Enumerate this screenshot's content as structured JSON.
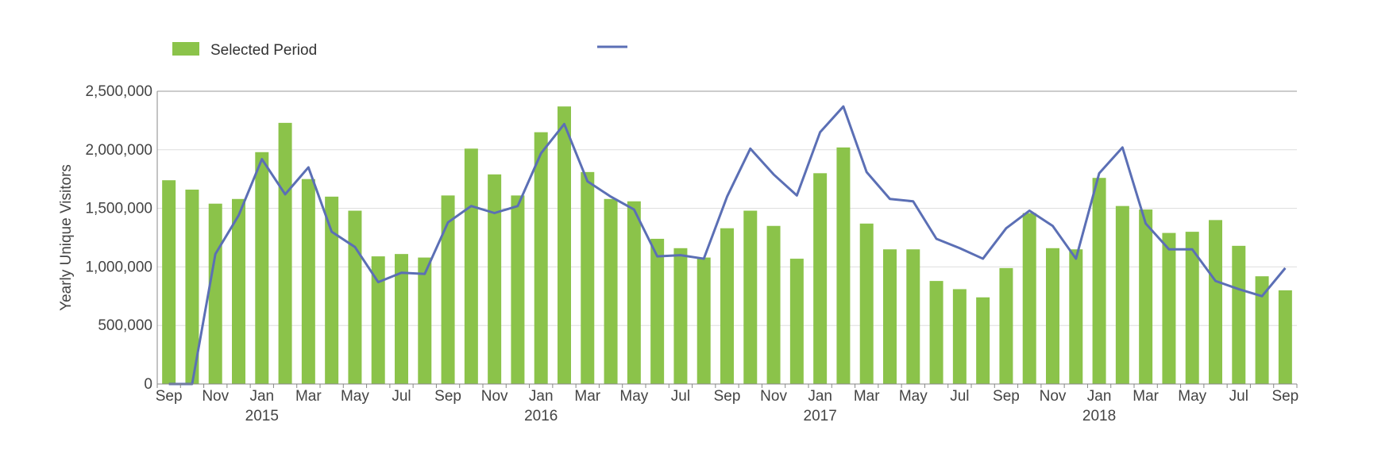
{
  "chart_data": {
    "type": "bar",
    "ylabel": "Yearly Unique Visitors",
    "xlabel": "",
    "ylim": [
      0,
      2500000
    ],
    "y_ticks": [
      0,
      500000,
      1000000,
      1500000,
      2000000,
      2500000
    ],
    "y_tick_labels": [
      "0",
      "500,000",
      "1,000,000",
      "1,500,000",
      "2,000,000",
      "2,500,000"
    ],
    "grid": true,
    "legend": {
      "placement": "top-left",
      "entries": [
        {
          "name": "Selected Period",
          "type": "bar"
        },
        {
          "name": "",
          "type": "line"
        }
      ]
    },
    "months": [
      "Sep",
      "Oct",
      "Nov",
      "Dec",
      "Jan",
      "Feb",
      "Mar",
      "Apr",
      "May",
      "Jun",
      "Jul",
      "Aug",
      "Sep",
      "Oct",
      "Nov",
      "Dec",
      "Jan",
      "Feb",
      "Mar",
      "Apr",
      "May",
      "Jun",
      "Jul",
      "Aug",
      "Sep",
      "Oct",
      "Nov",
      "Dec",
      "Jan",
      "Feb",
      "Mar",
      "Apr",
      "May",
      "Jun",
      "Jul",
      "Aug",
      "Sep",
      "Oct",
      "Nov",
      "Dec",
      "Jan",
      "Feb",
      "Mar",
      "Apr",
      "May",
      "Jun",
      "Jul",
      "Aug",
      "Sep"
    ],
    "x_tick_labels": [
      "Sep",
      "",
      "Nov",
      "",
      "Jan",
      "",
      "Mar",
      "",
      "May",
      "",
      "Jul",
      "",
      "Sep",
      "",
      "Nov",
      "",
      "Jan",
      "",
      "Mar",
      "",
      "May",
      "",
      "Jul",
      "",
      "Sep",
      "",
      "Nov",
      "",
      "Jan",
      "",
      "Mar",
      "",
      "May",
      "",
      "Jul",
      "",
      "Sep",
      "",
      "Nov",
      "",
      "Jan",
      "",
      "Mar",
      "",
      "May",
      "",
      "Jul",
      "",
      "Sep"
    ],
    "year_labels": [
      {
        "label": "2015",
        "index": 4
      },
      {
        "label": "2016",
        "index": 16
      },
      {
        "label": "2017",
        "index": 28
      },
      {
        "label": "2018",
        "index": 40
      }
    ],
    "series": [
      {
        "name": "Selected Period",
        "type": "bar",
        "color": "#8bc34a",
        "values": [
          1740000,
          1660000,
          1540000,
          1580000,
          1980000,
          2230000,
          1750000,
          1600000,
          1480000,
          1090000,
          1110000,
          1080000,
          1610000,
          2010000,
          1790000,
          1610000,
          2150000,
          2370000,
          1810000,
          1580000,
          1560000,
          1240000,
          1160000,
          1080000,
          1330000,
          1480000,
          1350000,
          1070000,
          1800000,
          2020000,
          1370000,
          1150000,
          1150000,
          880000,
          810000,
          740000,
          990000,
          1460000,
          1160000,
          1150000,
          1760000,
          1520000,
          1490000,
          1290000,
          1300000,
          1400000,
          1180000,
          920000,
          800000
        ]
      },
      {
        "name": "",
        "type": "line",
        "color": "#5b6fb5",
        "values": [
          0,
          0,
          1110000,
          1440000,
          1920000,
          1620000,
          1850000,
          1300000,
          1170000,
          870000,
          950000,
          940000,
          1380000,
          1520000,
          1460000,
          1520000,
          1970000,
          2220000,
          1730000,
          1600000,
          1490000,
          1090000,
          1100000,
          1070000,
          1600000,
          2010000,
          1790000,
          1610000,
          2150000,
          2370000,
          1810000,
          1580000,
          1560000,
          1240000,
          1160000,
          1070000,
          1330000,
          1480000,
          1350000,
          1070000,
          1800000,
          2020000,
          1370000,
          1150000,
          1150000,
          880000,
          810000,
          750000,
          990000
        ]
      }
    ]
  }
}
